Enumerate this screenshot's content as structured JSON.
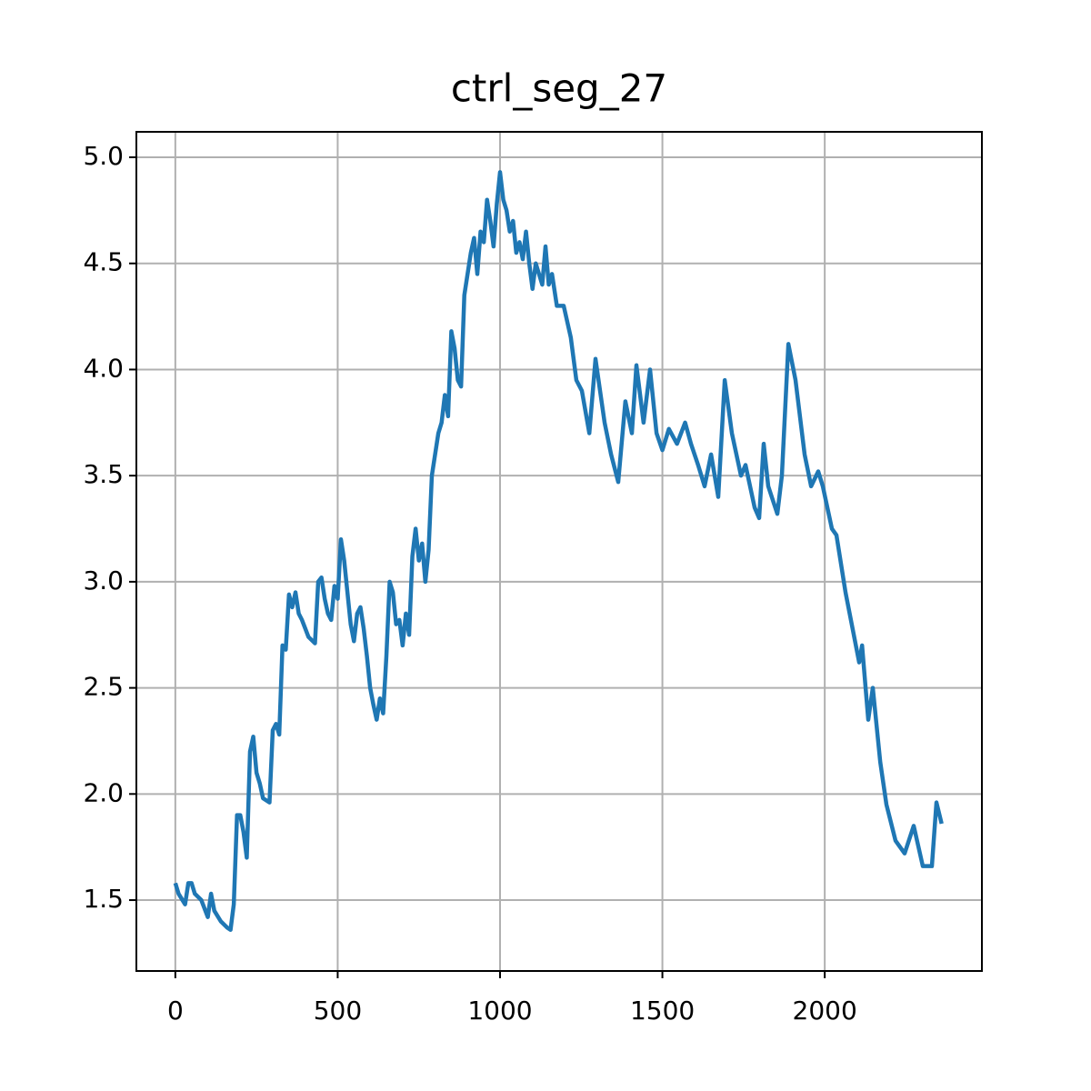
{
  "chart_data": {
    "type": "line",
    "title": "ctrl_seg_27",
    "x": [
      0,
      10,
      30,
      40,
      50,
      60,
      80,
      100,
      110,
      120,
      140,
      160,
      170,
      180,
      190,
      200,
      210,
      220,
      230,
      240,
      250,
      260,
      270,
      290,
      300,
      310,
      320,
      330,
      340,
      350,
      360,
      370,
      380,
      390,
      400,
      410,
      430,
      440,
      450,
      460,
      470,
      480,
      490,
      500,
      510,
      520,
      530,
      540,
      550,
      560,
      570,
      580,
      590,
      600,
      610,
      620,
      630,
      640,
      650,
      660,
      670,
      680,
      690,
      700,
      710,
      720,
      730,
      740,
      750,
      760,
      770,
      780,
      790,
      800,
      810,
      820,
      830,
      840,
      850,
      860,
      870,
      880,
      890,
      900,
      910,
      920,
      930,
      940,
      950,
      960,
      970,
      980,
      990,
      1000,
      1010,
      1020,
      1030,
      1040,
      1050,
      1060,
      1070,
      1080,
      1090,
      1100,
      1110,
      1120,
      1130,
      1140,
      1150,
      1160,
      1175,
      1196,
      1218,
      1235,
      1252,
      1275,
      1294,
      1322,
      1342,
      1364,
      1386,
      1406,
      1420,
      1442,
      1462,
      1482,
      1500,
      1520,
      1545,
      1570,
      1588,
      1610,
      1630,
      1650,
      1672,
      1692,
      1714,
      1742,
      1756,
      1784,
      1798,
      1812,
      1826,
      1854,
      1868,
      1888,
      1910,
      1938,
      1958,
      1980,
      1994,
      2022,
      2036,
      2064,
      2106,
      2115,
      2134,
      2148,
      2171,
      2190,
      2218,
      2246,
      2274,
      2302,
      2330,
      2344,
      2360
    ],
    "series": [
      {
        "color": "#1f77b4",
        "values": [
          1.58,
          1.53,
          1.48,
          1.58,
          1.58,
          1.53,
          1.5,
          1.42,
          1.53,
          1.45,
          1.4,
          1.37,
          1.36,
          1.48,
          1.9,
          1.9,
          1.82,
          1.7,
          2.2,
          2.27,
          2.1,
          2.05,
          1.98,
          1.96,
          2.3,
          2.33,
          2.28,
          2.7,
          2.68,
          2.94,
          2.88,
          2.95,
          2.85,
          2.82,
          2.78,
          2.74,
          2.71,
          3.0,
          3.02,
          2.92,
          2.85,
          2.82,
          2.98,
          2.92,
          3.2,
          3.1,
          2.95,
          2.8,
          2.72,
          2.85,
          2.88,
          2.78,
          2.65,
          2.5,
          2.42,
          2.35,
          2.45,
          2.38,
          2.65,
          3.0,
          2.95,
          2.8,
          2.82,
          2.7,
          2.85,
          2.75,
          3.12,
          3.25,
          3.1,
          3.18,
          3.0,
          3.15,
          3.5,
          3.6,
          3.7,
          3.75,
          3.88,
          3.78,
          4.18,
          4.1,
          3.95,
          3.92,
          4.35,
          4.45,
          4.55,
          4.62,
          4.45,
          4.65,
          4.6,
          4.8,
          4.7,
          4.58,
          4.78,
          4.93,
          4.8,
          4.75,
          4.65,
          4.7,
          4.55,
          4.6,
          4.52,
          4.65,
          4.5,
          4.38,
          4.5,
          4.45,
          4.4,
          4.58,
          4.4,
          4.45,
          4.3,
          4.3,
          4.15,
          3.95,
          3.9,
          3.7,
          4.05,
          3.75,
          3.6,
          3.47,
          3.85,
          3.7,
          4.02,
          3.75,
          4.0,
          3.7,
          3.62,
          3.72,
          3.65,
          3.75,
          3.65,
          3.55,
          3.45,
          3.6,
          3.4,
          3.95,
          3.7,
          3.5,
          3.55,
          3.35,
          3.3,
          3.65,
          3.45,
          3.32,
          3.5,
          4.12,
          3.95,
          3.6,
          3.45,
          3.52,
          3.45,
          3.25,
          3.22,
          2.95,
          2.62,
          2.7,
          2.35,
          2.5,
          2.15,
          1.95,
          1.78,
          1.72,
          1.85,
          1.66,
          1.66,
          1.96,
          1.86
        ]
      }
    ],
    "xlim": [
      -120,
      2484
    ],
    "xticks": [
      0,
      500,
      1000,
      1500,
      2000
    ],
    "ylim": [
      1.166,
      5.12
    ],
    "yticks": [
      1.5,
      {
        "value": 2.0,
        "label": "2.0"
      },
      2.5,
      {
        "value": 3.0,
        "label": "3.0"
      },
      3.5,
      {
        "value": 4.0,
        "label": "4.0"
      },
      4.5,
      {
        "value": 5.0,
        "label": "5.0"
      }
    ],
    "grid": true
  }
}
